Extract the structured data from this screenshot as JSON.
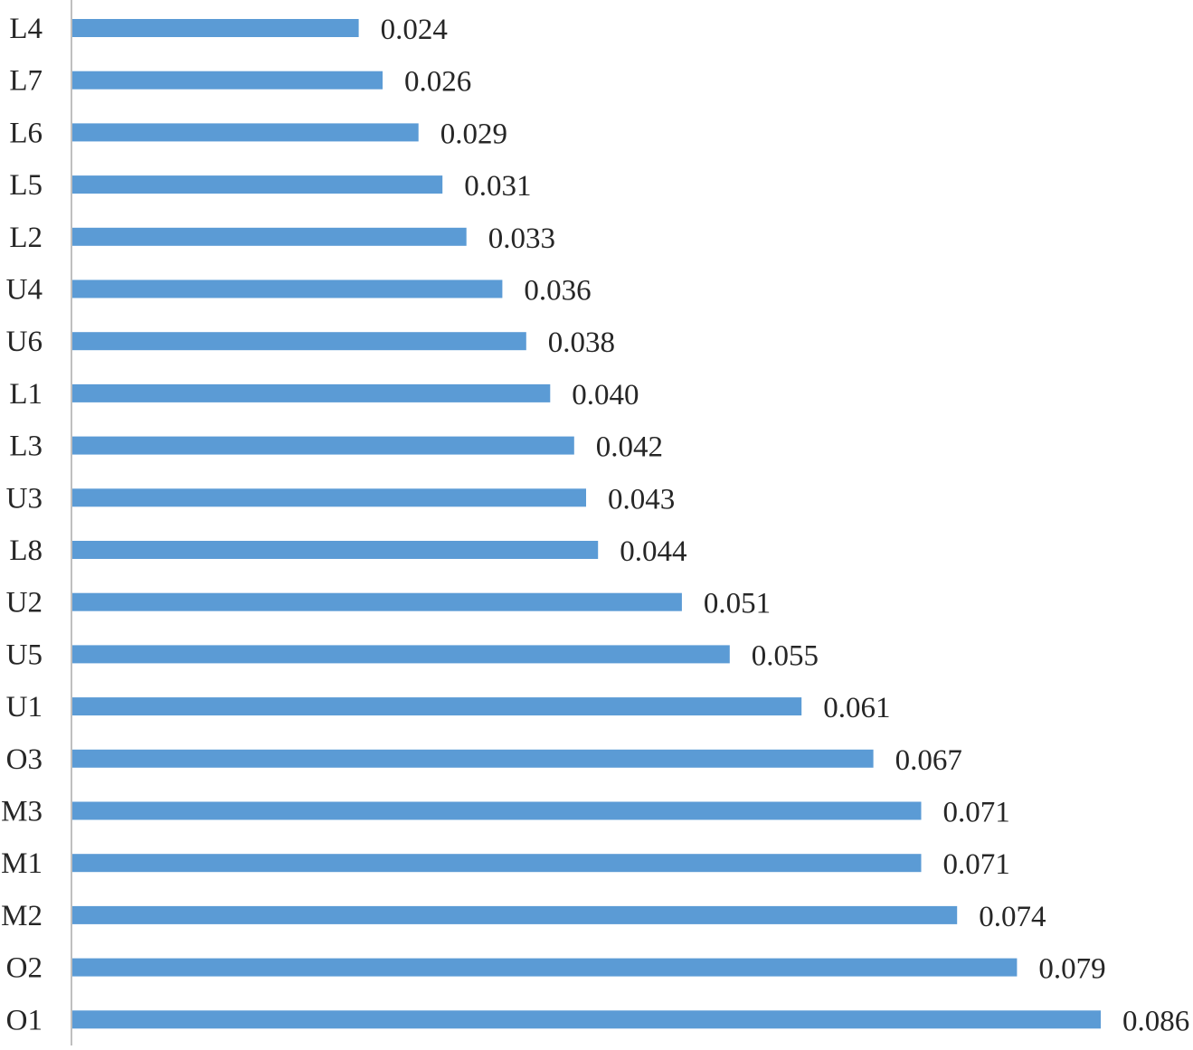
{
  "chart_data": {
    "type": "bar",
    "orientation": "horizontal",
    "title": "",
    "xlabel": "",
    "ylabel": "",
    "grid": false,
    "legend": "none",
    "bar_color": "#5b9bd5",
    "axis_color": "#bfbfbf",
    "text_color": "#262626",
    "categories": [
      "L4",
      "L7",
      "L6",
      "L5",
      "L2",
      "U4",
      "U6",
      "L1",
      "L3",
      "U3",
      "L8",
      "U2",
      "U5",
      "U1",
      "O3",
      "M3",
      "M1",
      "M2",
      "O2",
      "O1"
    ],
    "values": [
      0.024,
      0.026,
      0.029,
      0.031,
      0.033,
      0.036,
      0.038,
      0.04,
      0.042,
      0.043,
      0.044,
      0.051,
      0.055,
      0.061,
      0.067,
      0.071,
      0.071,
      0.074,
      0.079,
      0.086
    ],
    "value_labels": [
      "0.024",
      "0.026",
      "0.029",
      "0.031",
      "0.033",
      "0.036",
      "0.038",
      "0.040",
      "0.042",
      "0.043",
      "0.044",
      "0.051",
      "0.055",
      "0.061",
      "0.067",
      "0.071",
      "0.071",
      "0.074",
      "0.079",
      "0.086"
    ],
    "xlim": [
      0,
      0.086
    ]
  }
}
